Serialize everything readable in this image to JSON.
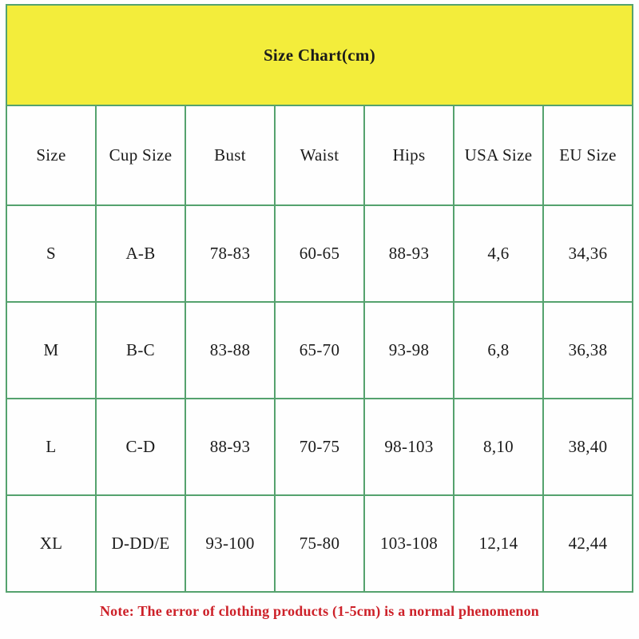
{
  "title": "Size Chart(cm)",
  "note": "Note: The error of clothing products (1-5cm) is a normal phenomenon",
  "colors": {
    "title_background": "#f3ed3b",
    "table_border": "#55a26e",
    "note_text": "#cd2129",
    "cell_text": "#1b1b1b"
  },
  "chart_data": {
    "type": "table",
    "title": "Size Chart(cm)",
    "columns": [
      "Size",
      "Cup Size",
      "Bust",
      "Waist",
      "Hips",
      "USA Size",
      "EU Size"
    ],
    "rows": [
      [
        "S",
        "A-B",
        "78-83",
        "60-65",
        "88-93",
        "4,6",
        "34,36"
      ],
      [
        "M",
        "B-C",
        "83-88",
        "65-70",
        "93-98",
        "6,8",
        "36,38"
      ],
      [
        "L",
        "C-D",
        "88-93",
        "70-75",
        "98-103",
        "8,10",
        "38,40"
      ],
      [
        "XL",
        "D-DD/E",
        "93-100",
        "75-80",
        "103-108",
        "12,14",
        "42,44"
      ]
    ]
  }
}
